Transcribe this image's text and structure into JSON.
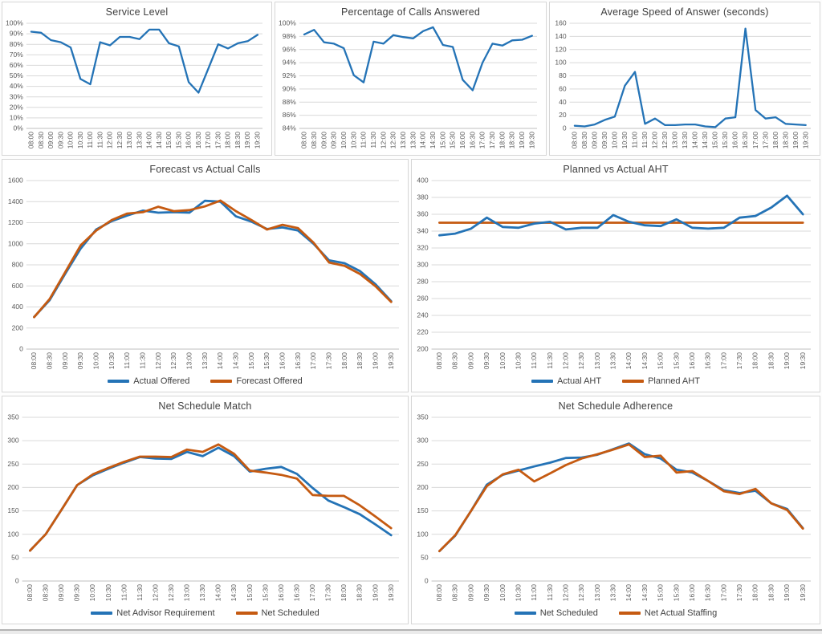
{
  "colors": {
    "blue": "#2473b6",
    "orange": "#c55a11",
    "grid": "#d9d9d9",
    "axis": "#bfbfbf",
    "title_text": "#404040",
    "tick_text": "#595959",
    "panel_border": "#d6d6d6"
  },
  "times": [
    "08:00",
    "08:30",
    "09:00",
    "09:30",
    "10:00",
    "10:30",
    "11:00",
    "11:30",
    "12:00",
    "12:30",
    "13:00",
    "13:30",
    "14:00",
    "14:30",
    "15:00",
    "15:30",
    "16:00",
    "16:30",
    "17:00",
    "17:30",
    "18:00",
    "18:30",
    "19:00",
    "19:30"
  ],
  "chart_data": [
    {
      "id": "service-level",
      "type": "line",
      "title": "Service Level",
      "y_format": "percent",
      "ylim": [
        0,
        100
      ],
      "ytick_step": 10,
      "grid": true,
      "legend": false,
      "series": [
        {
          "name": "Service Level",
          "color": "blue",
          "values": [
            92,
            91,
            84,
            82,
            77,
            47,
            42,
            82,
            79,
            87,
            87,
            85,
            94,
            94,
            81,
            78,
            44,
            34,
            57,
            80,
            76,
            81,
            83,
            89
          ]
        }
      ]
    },
    {
      "id": "calls-answered",
      "type": "line",
      "title": "Percentage of Calls Answered",
      "y_format": "percent",
      "ylim": [
        84,
        100
      ],
      "ytick_step": 2,
      "grid": true,
      "legend": false,
      "series": [
        {
          "name": "Percentage of Calls Answered",
          "color": "blue",
          "values": [
            98.3,
            99,
            97.1,
            96.9,
            96.2,
            92.1,
            91,
            97.2,
            96.9,
            98.2,
            97.9,
            97.7,
            98.8,
            99.4,
            96.7,
            96.4,
            91.4,
            89.8,
            94,
            96.9,
            96.6,
            97.4,
            97.5,
            98.1
          ]
        }
      ]
    },
    {
      "id": "average-speed-of-answer",
      "type": "line",
      "title": "Average Speed of Answer (seconds)",
      "y_format": "number",
      "ylim": [
        0,
        160
      ],
      "ytick_step": 20,
      "grid": true,
      "legend": false,
      "series": [
        {
          "name": "Average Speed of Answer",
          "color": "blue",
          "values": [
            4,
            3,
            6,
            13,
            18,
            65,
            86,
            7,
            15,
            5,
            5,
            6,
            6,
            3,
            2,
            15,
            17,
            152,
            28,
            15,
            17,
            7,
            6,
            5
          ]
        }
      ]
    },
    {
      "id": "forecast-vs-actual-calls",
      "type": "line",
      "title": "Forecast vs Actual Calls",
      "y_format": "number",
      "ylim": [
        0,
        1600
      ],
      "ytick_step": 200,
      "grid": true,
      "legend": true,
      "series": [
        {
          "name": "Actual Offered",
          "color": "blue",
          "values": [
            305,
            465,
            715,
            955,
            1135,
            1215,
            1268,
            1315,
            1295,
            1300,
            1295,
            1408,
            1400,
            1260,
            1210,
            1140,
            1155,
            1125,
            1000,
            843,
            815,
            740,
            613,
            455
          ]
        },
        {
          "name": "Forecast Offered",
          "color": "orange",
          "values": [
            303,
            475,
            730,
            985,
            1125,
            1225,
            1287,
            1300,
            1352,
            1310,
            1320,
            1355,
            1410,
            1310,
            1225,
            1135,
            1180,
            1148,
            1010,
            822,
            790,
            712,
            595,
            448
          ]
        }
      ]
    },
    {
      "id": "planned-vs-actual-aht",
      "type": "line",
      "title": "Planned vs Actual AHT",
      "y_format": "number",
      "ylim": [
        200,
        400
      ],
      "ytick_step": 20,
      "grid": true,
      "legend": true,
      "series": [
        {
          "name": "Actual AHT",
          "color": "blue",
          "z": 2,
          "values": [
            335,
            337,
            343,
            356,
            345,
            344,
            349,
            351,
            342,
            344,
            344,
            359,
            351,
            347,
            346,
            354,
            344,
            343,
            344,
            356,
            358,
            368,
            382,
            360
          ]
        },
        {
          "name": "Planned AHT",
          "color": "orange",
          "z": 1,
          "values": [
            350,
            350,
            350,
            350,
            350,
            350,
            350,
            350,
            350,
            350,
            350,
            350,
            350,
            350,
            350,
            350,
            350,
            350,
            350,
            350,
            350,
            350,
            350,
            350
          ]
        }
      ]
    },
    {
      "id": "net-schedule-match",
      "type": "line",
      "title": "Net Schedule Match",
      "y_format": "number",
      "ylim": [
        0,
        350
      ],
      "ytick_step": 50,
      "grid": true,
      "legend": true,
      "series": [
        {
          "name": "Net Advisor Requirement",
          "color": "blue",
          "values": [
            65,
            100,
            152,
            205,
            226,
            240,
            253,
            265,
            262,
            261,
            276,
            267,
            285,
            267,
            234,
            240,
            244,
            229,
            199,
            172,
            158,
            143,
            121,
            98
          ]
        },
        {
          "name": "Net Scheduled",
          "color": "orange",
          "values": [
            65,
            100,
            152,
            205,
            228,
            242,
            255,
            266,
            266,
            265,
            281,
            276,
            292,
            272,
            236,
            232,
            227,
            219,
            184,
            182,
            182,
            162,
            138,
            113
          ]
        }
      ]
    },
    {
      "id": "net-schedule-adherence",
      "type": "line",
      "title": "Net Schedule Adherence",
      "y_format": "number",
      "ylim": [
        0,
        350
      ],
      "ytick_step": 50,
      "grid": true,
      "legend": true,
      "series": [
        {
          "name": "Net Scheduled",
          "color": "blue",
          "values": [
            64,
            97,
            150,
            206,
            227,
            236,
            245,
            253,
            263,
            264,
            270,
            282,
            294,
            271,
            262,
            238,
            232,
            214,
            194,
            188,
            193,
            166,
            154,
            113
          ]
        },
        {
          "name": "Net Actual Staffing",
          "color": "orange",
          "values": [
            64,
            98,
            150,
            203,
            228,
            238,
            213,
            230,
            248,
            262,
            271,
            281,
            292,
            265,
            268,
            232,
            235,
            214,
            192,
            186,
            197,
            166,
            152,
            112
          ]
        }
      ]
    }
  ]
}
